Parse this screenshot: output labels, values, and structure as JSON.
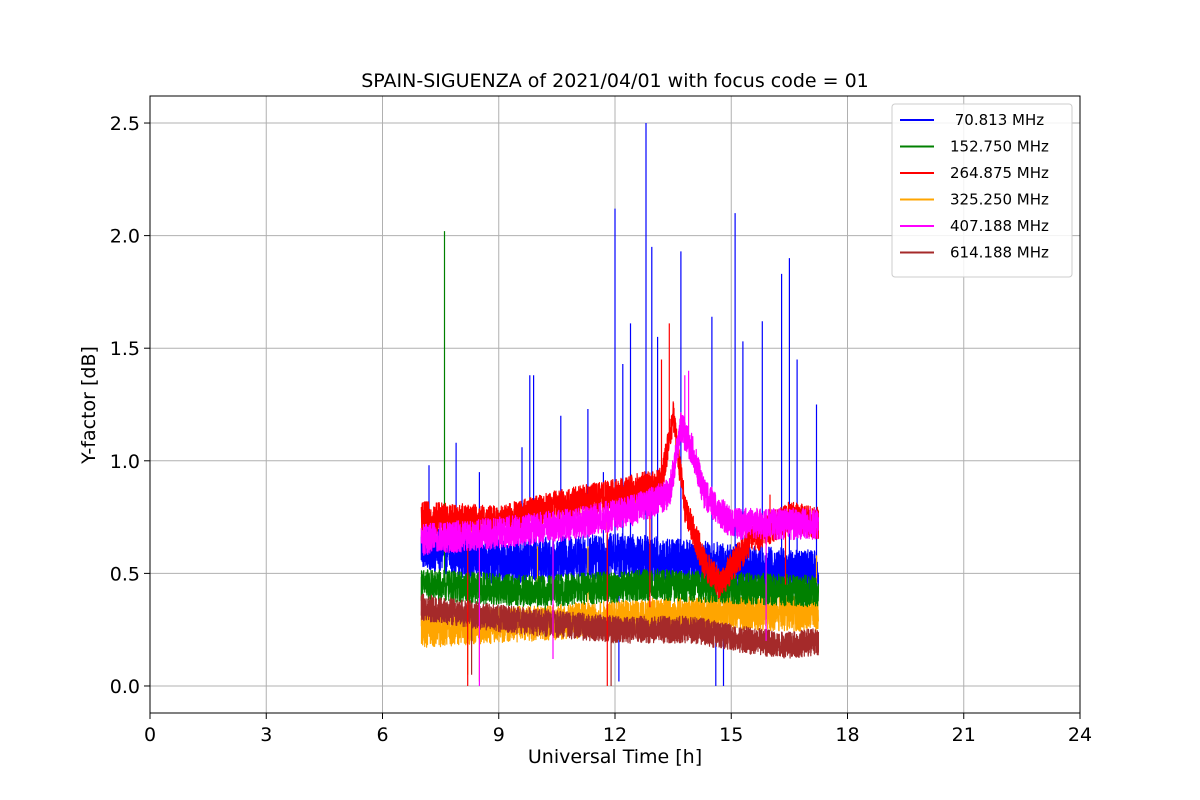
{
  "chart_data": {
    "type": "line",
    "title": "SPAIN-SIGUENZA of 2021/04/01 with focus code = 01",
    "xlabel": "Universal Time [h]",
    "ylabel": "Y-factor [dB]",
    "xlim": [
      0,
      24
    ],
    "ylim": [
      -0.12,
      2.62
    ],
    "xticks": [
      0,
      3,
      6,
      9,
      12,
      15,
      18,
      21,
      24
    ],
    "xtick_labels": [
      "0",
      "3",
      "6",
      "9",
      "12",
      "15",
      "18",
      "21",
      "24"
    ],
    "yticks": [
      0.0,
      0.5,
      1.0,
      1.5,
      2.0,
      2.5
    ],
    "ytick_labels": [
      "0.0",
      "0.5",
      "1.0",
      "1.5",
      "2.0",
      "2.5"
    ],
    "grid": true,
    "legend_position": "top-right",
    "series": [
      {
        "name": " 70.813 MHz",
        "color": "#0000ff",
        "base": 0.55,
        "noise": 0.1,
        "ymin": 0.0,
        "trend": [
          [
            7,
            0.62
          ],
          [
            9,
            0.55
          ],
          [
            12,
            0.58
          ],
          [
            14,
            0.55
          ],
          [
            17.3,
            0.5
          ]
        ],
        "spikes": [
          [
            7.2,
            0.98
          ],
          [
            7.9,
            1.08
          ],
          [
            8.5,
            0.95
          ],
          [
            9.6,
            1.06
          ],
          [
            9.8,
            1.38
          ],
          [
            9.9,
            1.38
          ],
          [
            10.6,
            1.2
          ],
          [
            11.3,
            1.23
          ],
          [
            11.7,
            0.95
          ],
          [
            12.0,
            2.12
          ],
          [
            12.2,
            1.43
          ],
          [
            12.4,
            1.61
          ],
          [
            12.8,
            2.5
          ],
          [
            12.95,
            1.95
          ],
          [
            13.1,
            1.55
          ],
          [
            13.7,
            1.93
          ],
          [
            14.5,
            1.64
          ],
          [
            15.1,
            2.1
          ],
          [
            15.3,
            1.53
          ],
          [
            15.8,
            1.62
          ],
          [
            16.3,
            1.83
          ],
          [
            16.5,
            1.9
          ],
          [
            16.7,
            1.45
          ],
          [
            17.2,
            1.25
          ]
        ],
        "dips": [
          [
            12.1,
            0.02
          ],
          [
            14.6,
            0.0
          ],
          [
            14.8,
            0.0
          ]
        ]
      },
      {
        "name": "152.750 MHz",
        "color": "#008000",
        "base": 0.42,
        "noise": 0.07,
        "trend": [
          [
            7,
            0.45
          ],
          [
            10,
            0.42
          ],
          [
            13,
            0.45
          ],
          [
            17.3,
            0.42
          ]
        ],
        "spikes": [
          [
            7.6,
            2.02
          ]
        ],
        "dips": [
          [
            8.3,
            0.2
          ],
          [
            10.2,
            0.22
          ]
        ]
      },
      {
        "name": "264.875 MHz",
        "color": "#ff0000",
        "base": 0.76,
        "noise": 0.07,
        "trend": [
          [
            7,
            0.75
          ],
          [
            9,
            0.73
          ],
          [
            10.5,
            0.8
          ],
          [
            12,
            0.85
          ],
          [
            13.2,
            0.9
          ],
          [
            13.5,
            1.2
          ],
          [
            13.8,
            0.8
          ],
          [
            14.3,
            0.55
          ],
          [
            14.7,
            0.45
          ],
          [
            15.5,
            0.65
          ],
          [
            16.5,
            0.75
          ],
          [
            17.3,
            0.72
          ]
        ],
        "spikes": [
          [
            13.4,
            1.61
          ],
          [
            13.2,
            1.45
          ],
          [
            16.0,
            0.85
          ]
        ],
        "dips": [
          [
            8.2,
            0.0
          ],
          [
            11.8,
            0.0
          ],
          [
            12.9,
            0.35
          ],
          [
            16.4,
            0.45
          ]
        ]
      },
      {
        "name": "325.250 MHz",
        "color": "#ffa500",
        "base": 0.3,
        "noise": 0.08,
        "trend": [
          [
            7,
            0.25
          ],
          [
            9,
            0.27
          ],
          [
            12,
            0.3
          ],
          [
            15,
            0.33
          ],
          [
            17.3,
            0.32
          ]
        ],
        "spikes": [
          [
            10.0,
            0.62
          ],
          [
            11.3,
            0.62
          ],
          [
            17.2,
            0.58
          ]
        ],
        "dips": [
          [
            8.2,
            0.05
          ],
          [
            8.5,
            0.02
          ]
        ]
      },
      {
        "name": "407.188 MHz",
        "color": "#ff00ff",
        "base": 0.7,
        "noise": 0.07,
        "trend": [
          [
            7,
            0.65
          ],
          [
            9,
            0.68
          ],
          [
            11,
            0.72
          ],
          [
            12.5,
            0.78
          ],
          [
            13.4,
            0.85
          ],
          [
            13.7,
            1.15
          ],
          [
            14.0,
            1.05
          ],
          [
            14.3,
            0.85
          ],
          [
            15,
            0.72
          ],
          [
            16,
            0.72
          ],
          [
            17.3,
            0.72
          ]
        ],
        "spikes": [
          [
            13.9,
            1.4
          ],
          [
            13.8,
            1.38
          ]
        ],
        "dips": [
          [
            8.5,
            0.0
          ],
          [
            10.4,
            0.12
          ],
          [
            15.9,
            0.2
          ]
        ]
      },
      {
        "name": "614.188 MHz",
        "color": "#a52a2a",
        "base": 0.28,
        "noise": 0.06,
        "trend": [
          [
            7,
            0.35
          ],
          [
            9,
            0.3
          ],
          [
            12,
            0.25
          ],
          [
            14,
            0.25
          ],
          [
            15.5,
            0.2
          ],
          [
            16.5,
            0.18
          ],
          [
            17.3,
            0.2
          ]
        ],
        "spikes": [],
        "dips": [
          [
            11.9,
            0.0
          ],
          [
            8.3,
            0.05
          ]
        ]
      }
    ]
  }
}
